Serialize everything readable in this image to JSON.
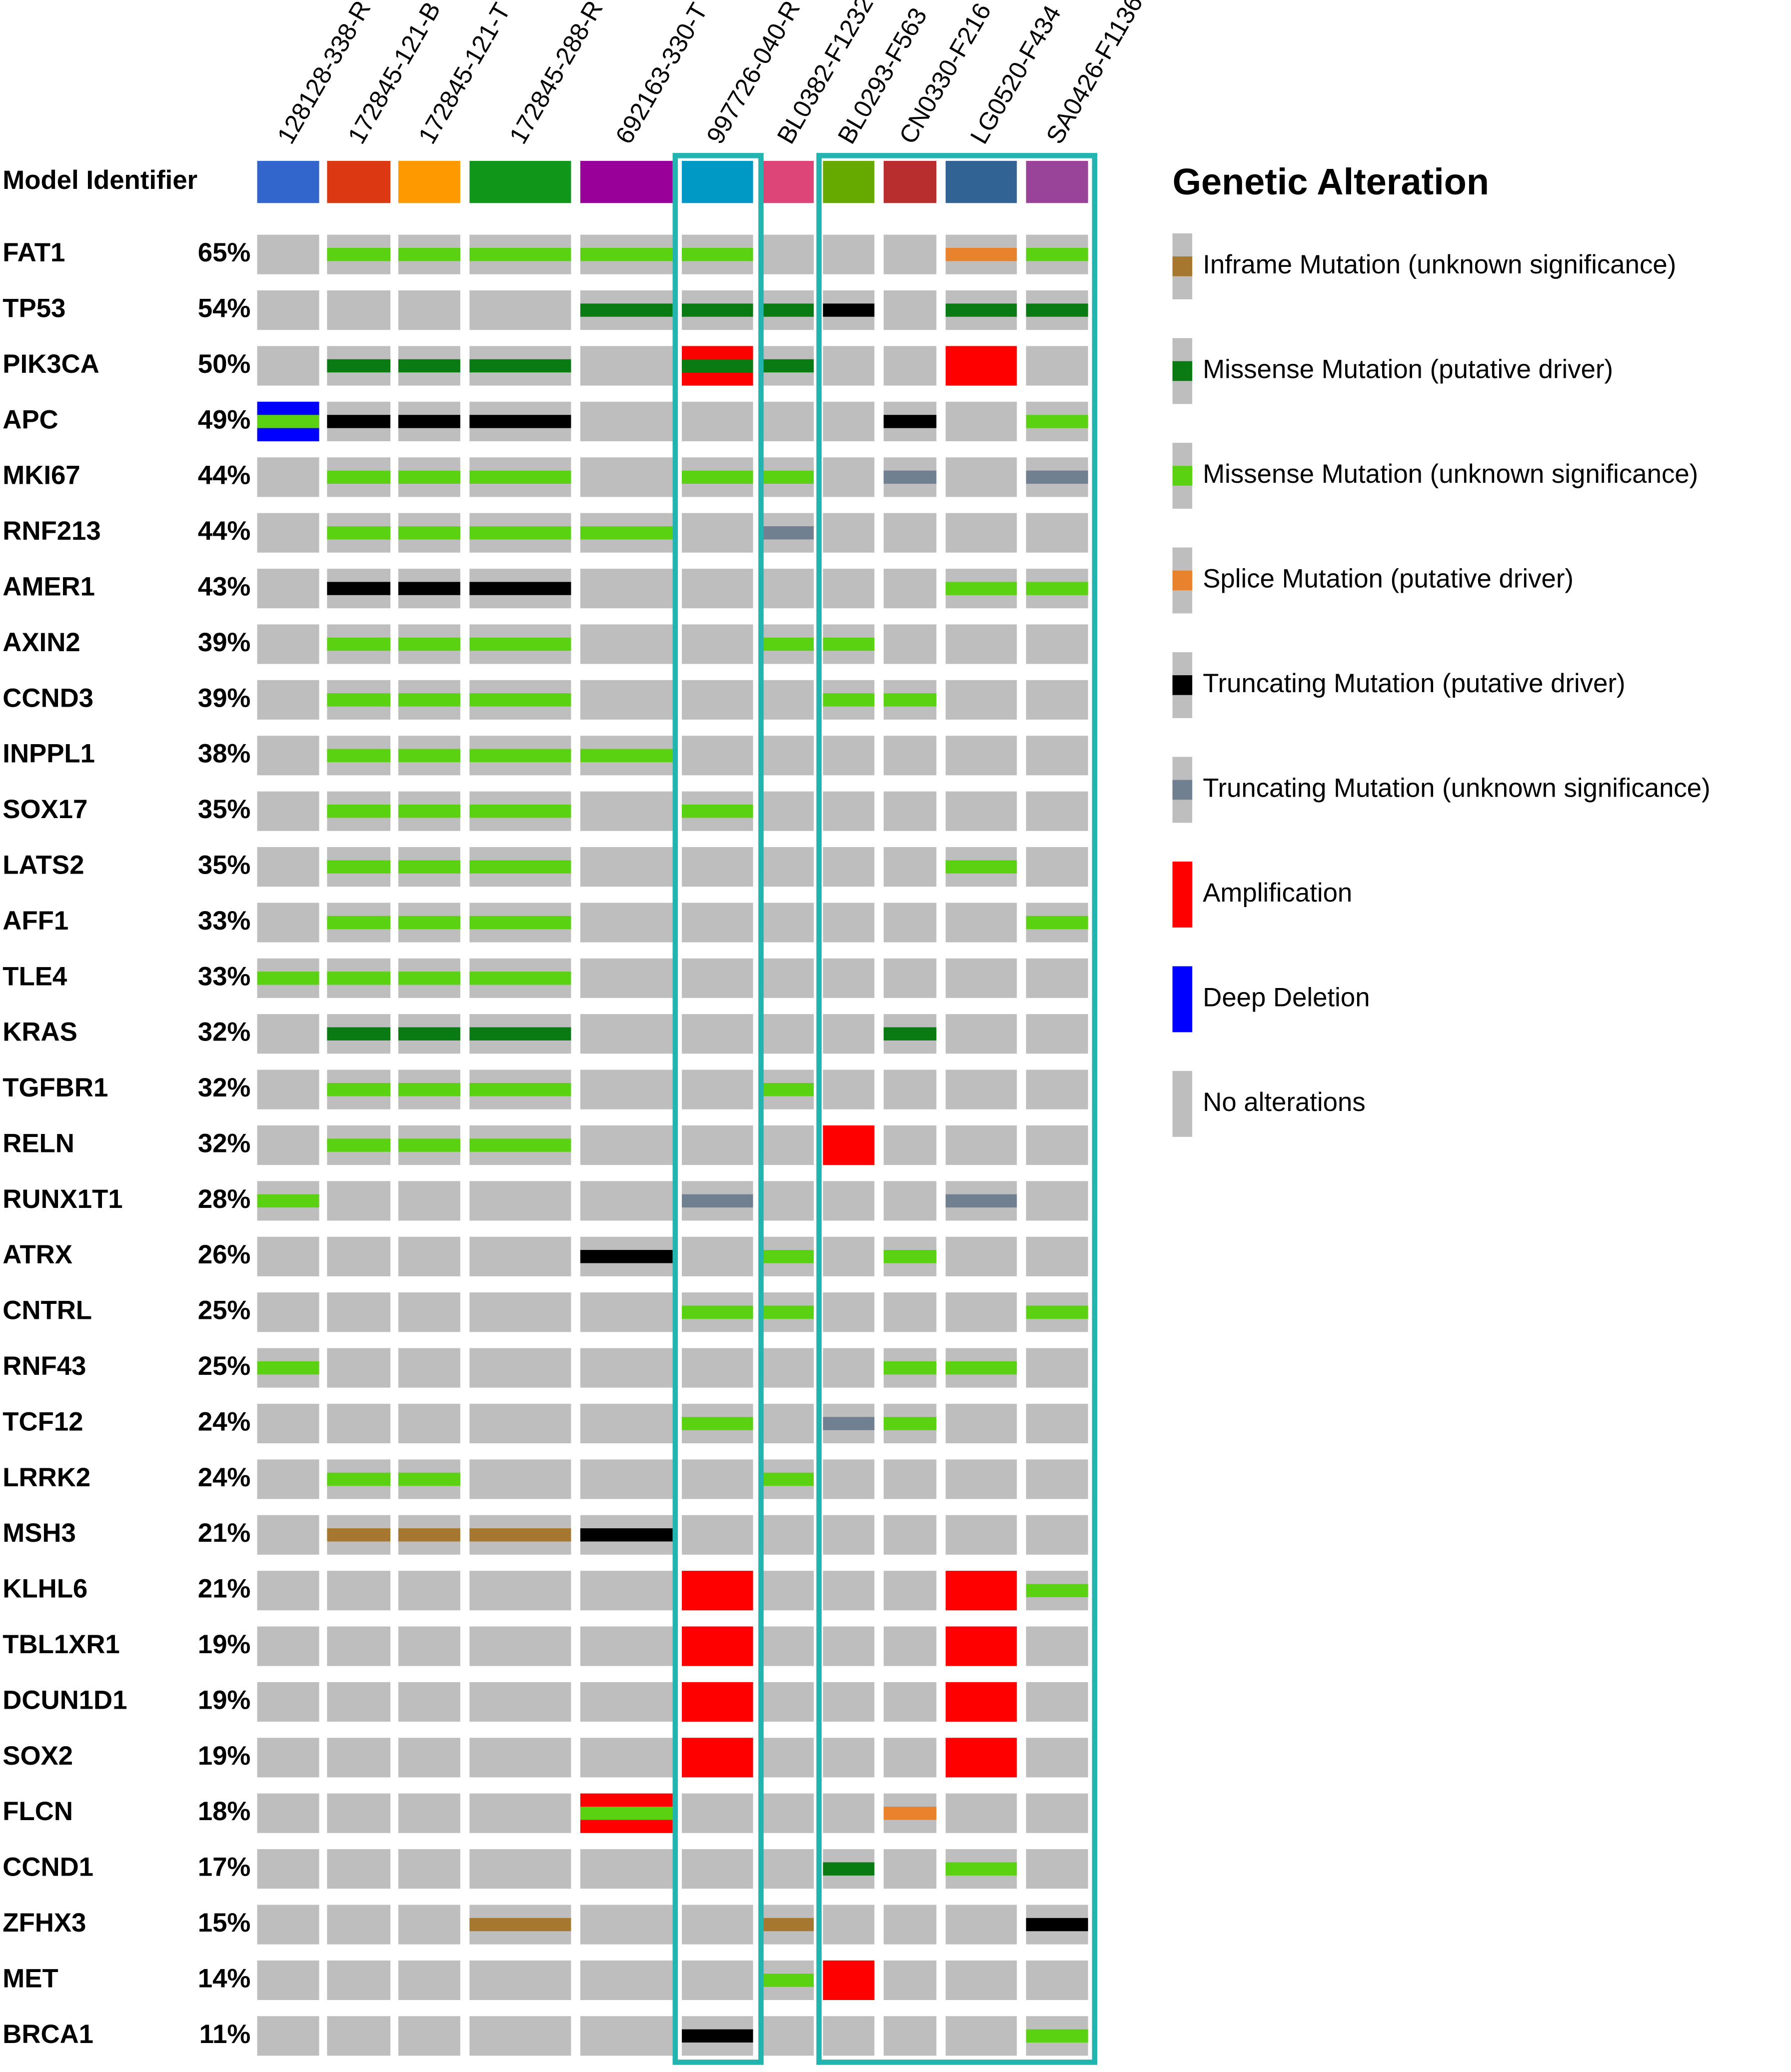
{
  "chart_data": {
    "type": "oncoprint",
    "row_header": "Model Identifier",
    "samples": [
      "128128-338-R",
      "172845-121-B",
      "172845-121-T",
      "172845-288-R",
      "692163-330-T",
      "997726-040-R",
      "BL0382-F1232",
      "BL0293-F563",
      "CN0330-F216",
      "LG0520-F434",
      "SA0426-F1136"
    ],
    "sample_colors": [
      "#3366cc",
      "#dc3912",
      "#ff9900",
      "#109618",
      "#990099",
      "#0099c6",
      "#dd4477",
      "#66aa00",
      "#b82e2e",
      "#316395",
      "#994499"
    ],
    "genes": [
      "FAT1",
      "TP53",
      "PIK3CA",
      "APC",
      "MKI67",
      "RNF213",
      "AMER1",
      "AXIN2",
      "CCND3",
      "INPPL1",
      "SOX17",
      "LATS2",
      "AFF1",
      "TLE4",
      "KRAS",
      "TGFBR1",
      "RELN",
      "RUNX1T1",
      "ATRX",
      "CNTRL",
      "RNF43",
      "TCF12",
      "LRRK2",
      "MSH3",
      "KLHL6",
      "TBL1XR1",
      "DCUN1D1",
      "SOX2",
      "FLCN",
      "CCND1",
      "ZFHX3",
      "MET",
      "BRCA1"
    ],
    "frequencies": [
      "65%",
      "54%",
      "50%",
      "49%",
      "44%",
      "44%",
      "43%",
      "39%",
      "39%",
      "38%",
      "35%",
      "35%",
      "33%",
      "33%",
      "32%",
      "32%",
      "32%",
      "28%",
      "26%",
      "25%",
      "25%",
      "24%",
      "24%",
      "21%",
      "21%",
      "19%",
      "19%",
      "19%",
      "18%",
      "17%",
      "15%",
      "14%",
      "11%"
    ],
    "alterations": [
      [
        [
          1,
          2
        ],
        [
          2,
          2
        ],
        [
          3,
          2
        ],
        [
          4,
          2
        ],
        [
          5,
          2
        ],
        [
          9,
          3
        ],
        [
          10,
          2
        ]
      ],
      [
        [
          4,
          1
        ],
        [
          5,
          1
        ],
        [
          6,
          1
        ],
        [
          7,
          4
        ],
        [
          9,
          1
        ],
        [
          10,
          1
        ]
      ],
      [
        [
          1,
          1
        ],
        [
          2,
          1
        ],
        [
          3,
          1
        ],
        [
          5,
          6
        ],
        [
          5,
          1
        ],
        [
          6,
          1
        ],
        [
          9,
          6
        ]
      ],
      [
        [
          0,
          7
        ],
        [
          0,
          2
        ],
        [
          1,
          4
        ],
        [
          2,
          4
        ],
        [
          3,
          4
        ],
        [
          8,
          4
        ],
        [
          10,
          2
        ]
      ],
      [
        [
          1,
          2
        ],
        [
          2,
          2
        ],
        [
          3,
          2
        ],
        [
          5,
          2
        ],
        [
          6,
          2
        ],
        [
          8,
          5
        ],
        [
          10,
          5
        ]
      ],
      [
        [
          1,
          2
        ],
        [
          2,
          2
        ],
        [
          3,
          2
        ],
        [
          4,
          2
        ],
        [
          6,
          5
        ]
      ],
      [
        [
          1,
          4
        ],
        [
          2,
          4
        ],
        [
          3,
          4
        ],
        [
          9,
          2
        ],
        [
          10,
          2
        ]
      ],
      [
        [
          1,
          2
        ],
        [
          2,
          2
        ],
        [
          3,
          2
        ],
        [
          6,
          2
        ],
        [
          7,
          2
        ]
      ],
      [
        [
          1,
          2
        ],
        [
          2,
          2
        ],
        [
          3,
          2
        ],
        [
          7,
          2
        ],
        [
          8,
          2
        ]
      ],
      [
        [
          1,
          2
        ],
        [
          2,
          2
        ],
        [
          3,
          2
        ],
        [
          4,
          2
        ]
      ],
      [
        [
          1,
          2
        ],
        [
          2,
          2
        ],
        [
          3,
          2
        ],
        [
          5,
          2
        ]
      ],
      [
        [
          1,
          2
        ],
        [
          2,
          2
        ],
        [
          3,
          2
        ],
        [
          9,
          2
        ]
      ],
      [
        [
          1,
          2
        ],
        [
          2,
          2
        ],
        [
          3,
          2
        ],
        [
          10,
          2
        ]
      ],
      [
        [
          0,
          2
        ],
        [
          1,
          2
        ],
        [
          2,
          2
        ],
        [
          3,
          2
        ]
      ],
      [
        [
          1,
          1
        ],
        [
          2,
          1
        ],
        [
          3,
          1
        ],
        [
          8,
          1
        ]
      ],
      [
        [
          1,
          2
        ],
        [
          2,
          2
        ],
        [
          3,
          2
        ],
        [
          6,
          2
        ]
      ],
      [
        [
          1,
          2
        ],
        [
          2,
          2
        ],
        [
          3,
          2
        ],
        [
          7,
          6
        ]
      ],
      [
        [
          0,
          2
        ],
        [
          5,
          5
        ],
        [
          9,
          5
        ]
      ],
      [
        [
          4,
          4
        ],
        [
          6,
          2
        ],
        [
          8,
          2
        ]
      ],
      [
        [
          5,
          2
        ],
        [
          6,
          2
        ],
        [
          10,
          2
        ]
      ],
      [
        [
          0,
          2
        ],
        [
          8,
          2
        ],
        [
          9,
          2
        ]
      ],
      [
        [
          5,
          2
        ],
        [
          7,
          5
        ],
        [
          8,
          2
        ]
      ],
      [
        [
          1,
          2
        ],
        [
          2,
          2
        ],
        [
          6,
          2
        ]
      ],
      [
        [
          1,
          0
        ],
        [
          2,
          0
        ],
        [
          3,
          0
        ],
        [
          4,
          4
        ]
      ],
      [
        [
          5,
          6
        ],
        [
          9,
          6
        ],
        [
          10,
          2
        ]
      ],
      [
        [
          5,
          6
        ],
        [
          9,
          6
        ]
      ],
      [
        [
          5,
          6
        ],
        [
          9,
          6
        ]
      ],
      [
        [
          5,
          6
        ],
        [
          9,
          6
        ]
      ],
      [
        [
          4,
          6
        ],
        [
          4,
          2
        ],
        [
          8,
          3
        ]
      ],
      [
        [
          7,
          1
        ],
        [
          9,
          2
        ]
      ],
      [
        [
          3,
          0
        ],
        [
          6,
          0
        ],
        [
          10,
          4
        ]
      ],
      [
        [
          6,
          2
        ],
        [
          7,
          6
        ]
      ],
      [
        [
          5,
          4
        ],
        [
          10,
          2
        ]
      ]
    ],
    "legend_title": "Genetic Alteration",
    "legend": [
      {
        "name": "Inframe Mutation (unknown significance)",
        "color": "#a6782f"
      },
      {
        "name": "Missense Mutation (putative driver)",
        "color": "#0a7a12"
      },
      {
        "name": "Missense Mutation (unknown significance)",
        "color": "#5ad111"
      },
      {
        "name": "Splice Mutation (putative driver)",
        "color": "#e8822c"
      },
      {
        "name": "Truncating Mutation (putative driver)",
        "color": "#000000"
      },
      {
        "name": "Truncating Mutation (unknown significance)",
        "color": "#708090"
      },
      {
        "name": "Amplification",
        "color": "#ff0000"
      },
      {
        "name": "Deep Deletion",
        "color": "#0000ff"
      },
      {
        "name": "No alterations",
        "color": "#bebebe"
      }
    ]
  }
}
